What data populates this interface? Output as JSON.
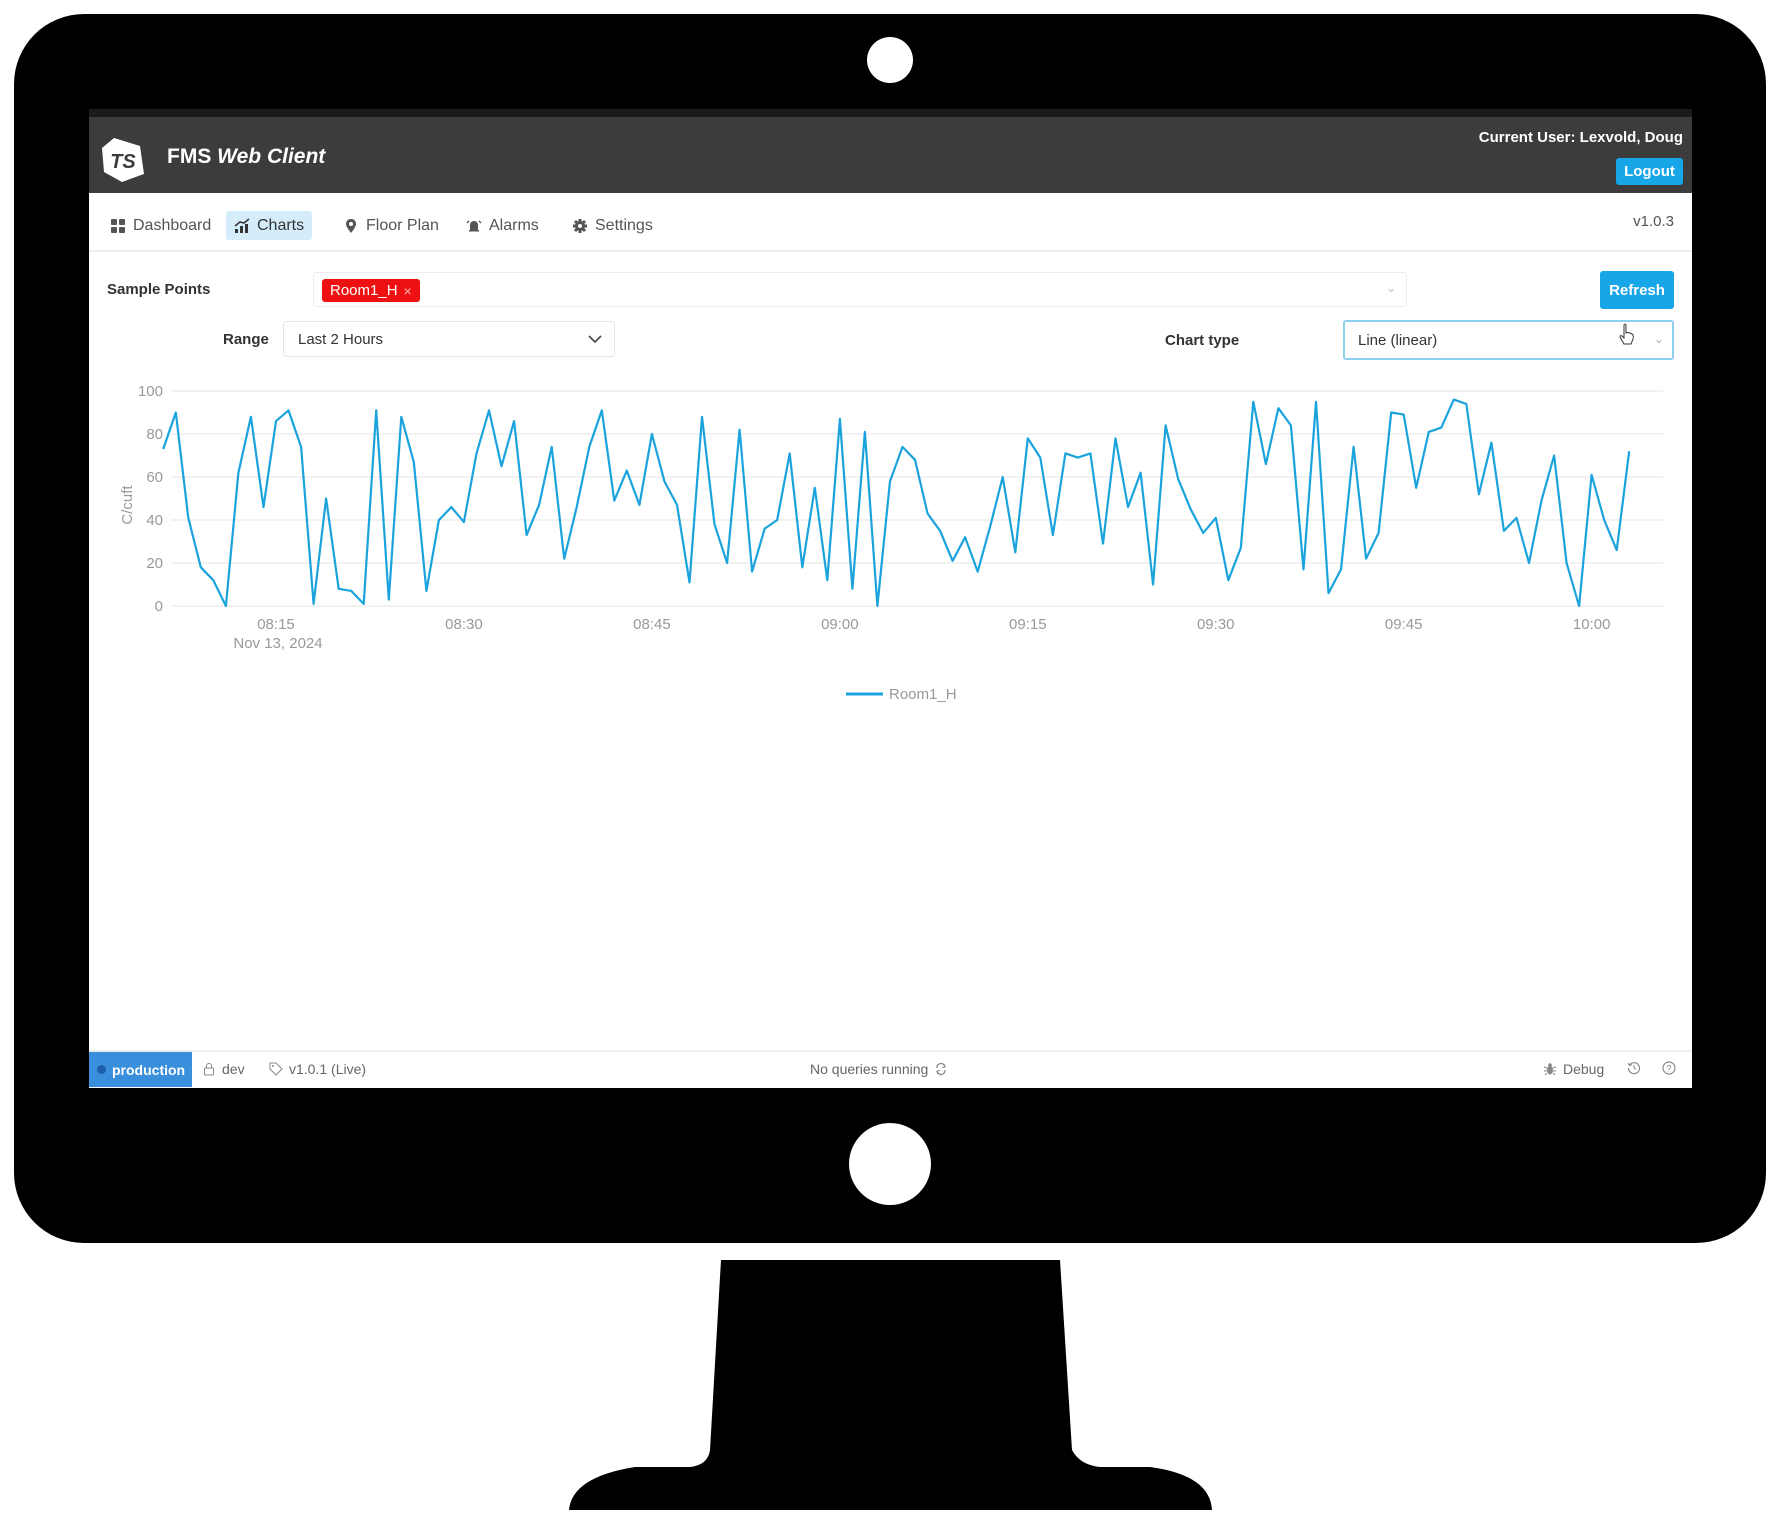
{
  "header": {
    "brand_logo": "TSI",
    "title_main": "FMS",
    "title_italic": "Web Client",
    "current_user": "Current User: Lexvold, Doug",
    "logout_label": "Logout"
  },
  "nav": {
    "items": [
      {
        "label": "Dashboard",
        "icon": "grid-icon"
      },
      {
        "label": "Charts",
        "icon": "chart-icon",
        "active": true
      },
      {
        "label": "Floor Plan",
        "icon": "map-pin-icon"
      },
      {
        "label": "Alarms",
        "icon": "alarm-bell-icon"
      },
      {
        "label": "Settings",
        "icon": "gear-icon"
      }
    ],
    "version": "v1.0.3"
  },
  "controls": {
    "sample_points_label": "Sample Points",
    "selected_tags": [
      "Room1_H"
    ],
    "tag_remove": "×",
    "refresh_label": "Refresh",
    "range_label": "Range",
    "range_value": "Last 2 Hours",
    "chart_type_label": "Chart type",
    "chart_type_value": "Line (linear)"
  },
  "colors": {
    "accent": "#17a6e8",
    "header_bg": "#3c3c3c",
    "tag_bg": "#ee1111",
    "series_line": "#1aa3dc",
    "env_badge": "#3a8fdc"
  },
  "chart_data": {
    "type": "line",
    "ylabel": "C/cuft",
    "ylim": [
      0,
      100
    ],
    "yticks": [
      "0",
      "20",
      "40",
      "60",
      "80",
      "100"
    ],
    "xticks": [
      "08:15",
      "08:30",
      "08:45",
      "09:00",
      "09:15",
      "09:30",
      "09:45",
      "10:00"
    ],
    "xdate": "Nov 13, 2024",
    "grid": true,
    "legend_position": "bottom",
    "series": [
      {
        "name": "Room1_H",
        "x": [
          "08:06",
          "08:07",
          "08:08",
          "08:09",
          "08:10",
          "08:11",
          "08:12",
          "08:13",
          "08:14",
          "08:15",
          "08:16",
          "08:17",
          "08:18",
          "08:19",
          "08:20",
          "08:21",
          "08:22",
          "08:23",
          "08:24",
          "08:25",
          "08:26",
          "08:27",
          "08:28",
          "08:29",
          "08:30",
          "08:31",
          "08:32",
          "08:33",
          "08:34",
          "08:35",
          "08:36",
          "08:37",
          "08:38",
          "08:39",
          "08:40",
          "08:41",
          "08:42",
          "08:43",
          "08:44",
          "08:45",
          "08:46",
          "08:47",
          "08:48",
          "08:49",
          "08:50",
          "08:51",
          "08:52",
          "08:53",
          "08:54",
          "08:55",
          "08:56",
          "08:57",
          "08:58",
          "08:59",
          "09:00",
          "09:01",
          "09:02",
          "09:03",
          "09:04",
          "09:05",
          "09:06",
          "09:07",
          "09:08",
          "09:09",
          "09:10",
          "09:11",
          "09:12",
          "09:13",
          "09:14",
          "09:15",
          "09:16",
          "09:17",
          "09:18",
          "09:19",
          "09:20",
          "09:21",
          "09:22",
          "09:23",
          "09:24",
          "09:25",
          "09:26",
          "09:27",
          "09:28",
          "09:29",
          "09:30",
          "09:31",
          "09:32",
          "09:33",
          "09:34",
          "09:35",
          "09:36",
          "09:37",
          "09:38",
          "09:39",
          "09:40",
          "09:41",
          "09:42",
          "09:43",
          "09:44",
          "09:45",
          "09:46",
          "09:47",
          "09:48",
          "09:49",
          "09:50",
          "09:51",
          "09:52",
          "09:53",
          "09:54",
          "09:55",
          "09:56",
          "09:57",
          "09:58",
          "09:59",
          "10:00",
          "10:01",
          "10:02",
          "10:03"
        ],
        "values": [
          73,
          90,
          41,
          18,
          12,
          0,
          62,
          88,
          46,
          86,
          91,
          74,
          1,
          50,
          8,
          7,
          1,
          91,
          3,
          88,
          67,
          7,
          40,
          46,
          39,
          71,
          91,
          65,
          86,
          33,
          47,
          74,
          22,
          46,
          74,
          91,
          49,
          63,
          47,
          80,
          58,
          47,
          11,
          88,
          38,
          20,
          82,
          16,
          36,
          40,
          71,
          18,
          55,
          12,
          87,
          8,
          81,
          0,
          58,
          74,
          68,
          43,
          35,
          21,
          32,
          16,
          37,
          60,
          25,
          78,
          69,
          33,
          71,
          69,
          71,
          29,
          78,
          46,
          62,
          10,
          84,
          59,
          45,
          34,
          41,
          12,
          27,
          95,
          66,
          92,
          84,
          17,
          95,
          6,
          17,
          74,
          22,
          34,
          90,
          89,
          55,
          81,
          83,
          96,
          94,
          52,
          76,
          35,
          41,
          20,
          49,
          70,
          20,
          0,
          61,
          40,
          26,
          72
        ]
      }
    ]
  },
  "footer": {
    "environment": "production",
    "branch": "dev",
    "release": "v1.0.1 (Live)",
    "status": "No queries running",
    "debug_label": "Debug"
  }
}
